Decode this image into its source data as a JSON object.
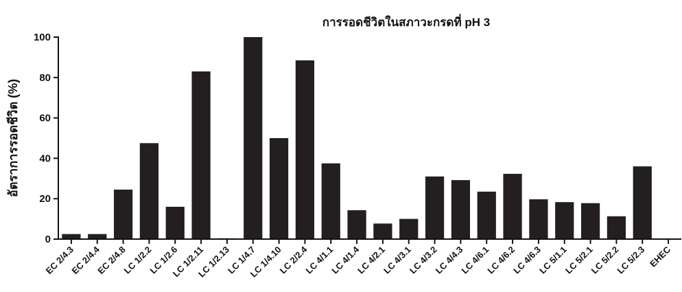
{
  "chart_data": {
    "type": "bar",
    "title": "การรอดชีวิตในสภาวะกรดที่ pH 3",
    "xlabel": "",
    "ylabel": "อัตราการรอดชีวิต (%)",
    "ylim": [
      0,
      100
    ],
    "yticks": [
      "0",
      "20",
      "40",
      "60",
      "80",
      "100"
    ],
    "grid": false,
    "bar_color": "#231f20",
    "categories": [
      "EC 2/4.3",
      "EC 2/4.4",
      "EC 2/4.8",
      "LC 1/2.2",
      "LC 1/2.6",
      "LC 1/2.11",
      "LC 1/2.13",
      "LC 1/4.7",
      "LC 1/4.10",
      "LC 2/2.4",
      "LC 4/1.1",
      "LC 4/1.4",
      "LC 4/2.1",
      "LC 4/3.1",
      "LC 4/3.2",
      "LC 4/4.3",
      "LC 4/6.1",
      "LC 4/6.2",
      "LC 4/6.3",
      "LC 5/1.1",
      "LC 5/2.1",
      "LC 5/2.2",
      "LC 5/2.3",
      "EHEC"
    ],
    "values": [
      2.5,
      2.5,
      24.5,
      47.5,
      16,
      83,
      0.4,
      100,
      50,
      88.5,
      37.5,
      14.3,
      7.7,
      10,
      31,
      29.2,
      23.5,
      32.3,
      19.7,
      18.3,
      17.8,
      11.3,
      36,
      0
    ]
  }
}
